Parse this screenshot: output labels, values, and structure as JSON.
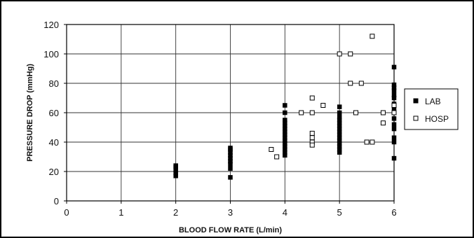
{
  "chart_data": {
    "type": "scatter",
    "xlabel": "BLOOD FLOW RATE (L/min)",
    "ylabel": "PRESSURE DROP (mmHg)",
    "xlim": [
      0,
      6
    ],
    "ylim": [
      0,
      120
    ],
    "xticks": [
      "0",
      "1",
      "2",
      "3",
      "4",
      "5",
      "6"
    ],
    "yticks": [
      "0",
      "20",
      "40",
      "60",
      "80",
      "100",
      "120"
    ],
    "grid": true,
    "legend": "right",
    "series": [
      {
        "name": "LAB",
        "marker": "filled-square",
        "color": "#000000",
        "points": [
          [
            2,
            17
          ],
          [
            2,
            19
          ],
          [
            2,
            21
          ],
          [
            2,
            23
          ],
          [
            2,
            24
          ],
          [
            3,
            16
          ],
          [
            3,
            22
          ],
          [
            3,
            25
          ],
          [
            3,
            27
          ],
          [
            3,
            29
          ],
          [
            3,
            31
          ],
          [
            3,
            33
          ],
          [
            3,
            35
          ],
          [
            3,
            36
          ],
          [
            4,
            31
          ],
          [
            4,
            33
          ],
          [
            4,
            35
          ],
          [
            4,
            37
          ],
          [
            4,
            39
          ],
          [
            4,
            41
          ],
          [
            4,
            43
          ],
          [
            4,
            45
          ],
          [
            4,
            47
          ],
          [
            4,
            49
          ],
          [
            4,
            51
          ],
          [
            4,
            53
          ],
          [
            4,
            55
          ],
          [
            4,
            60
          ],
          [
            4,
            65
          ],
          [
            5,
            33
          ],
          [
            5,
            35
          ],
          [
            5,
            37
          ],
          [
            5,
            39
          ],
          [
            5,
            41
          ],
          [
            5,
            43
          ],
          [
            5,
            45
          ],
          [
            5,
            47
          ],
          [
            5,
            49
          ],
          [
            5,
            51
          ],
          [
            5,
            53
          ],
          [
            5,
            55
          ],
          [
            5,
            57
          ],
          [
            5,
            60
          ],
          [
            5,
            64
          ],
          [
            6,
            29
          ],
          [
            6,
            40
          ],
          [
            6,
            43
          ],
          [
            6,
            49
          ],
          [
            6,
            52
          ],
          [
            6,
            56
          ],
          [
            6,
            60
          ],
          [
            6,
            63
          ],
          [
            6,
            66
          ],
          [
            6,
            70
          ],
          [
            6,
            72
          ],
          [
            6,
            75
          ],
          [
            6,
            77
          ],
          [
            6,
            79
          ],
          [
            6,
            91
          ]
        ]
      },
      {
        "name": "HOSP",
        "marker": "open-square",
        "color": "#000000",
        "points": [
          [
            3.75,
            35
          ],
          [
            3.85,
            30
          ],
          [
            4.3,
            60
          ],
          [
            4.5,
            70
          ],
          [
            4.5,
            60
          ],
          [
            4.5,
            46
          ],
          [
            4.5,
            43
          ],
          [
            4.5,
            40
          ],
          [
            4.5,
            38
          ],
          [
            4.7,
            65
          ],
          [
            5.0,
            100
          ],
          [
            5.2,
            100
          ],
          [
            5.2,
            80
          ],
          [
            5.4,
            80
          ],
          [
            5.3,
            60
          ],
          [
            5.5,
            40
          ],
          [
            5.6,
            40
          ],
          [
            5.6,
            112
          ],
          [
            5.8,
            60
          ],
          [
            5.8,
            53
          ],
          [
            6.0,
            65
          ],
          [
            6.0,
            60
          ]
        ]
      }
    ]
  }
}
